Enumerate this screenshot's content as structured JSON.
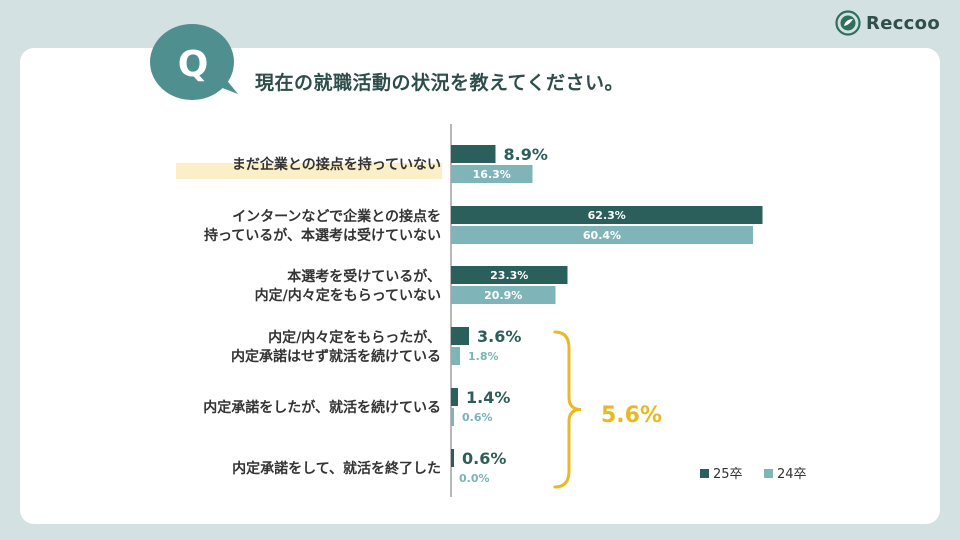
{
  "brand": {
    "name": "Reccoo"
  },
  "question": {
    "badge": "Q",
    "text": "現在の就職活動の状況を教えてください。"
  },
  "colors": {
    "series_25": "#2b5f5b",
    "series_24": "#7fb5b8",
    "accent": "#e8b923",
    "highlight": "#fbefc7",
    "badge": "#4f8f8f"
  },
  "chart_data": {
    "type": "bar",
    "orientation": "horizontal",
    "categories": [
      [
        "まだ企業との接点を持っていない"
      ],
      [
        "インターンなどで企業との接点を",
        "持っているが、本選考は受けていない"
      ],
      [
        "本選考を受けているが、",
        "内定/内々定をもらっていない"
      ],
      [
        "内定/内々定をもらったが、",
        "内定承諾はせず就活を続けている"
      ],
      [
        "内定承諾をしたが、就活を続けている"
      ],
      [
        "内定承諾をして、就活を終了した"
      ]
    ],
    "series": [
      {
        "name": "25卒",
        "values": [
          8.9,
          62.3,
          23.3,
          3.6,
          1.4,
          0.6
        ],
        "labels": [
          "8.9%",
          "62.3%",
          "23.3%",
          "3.6%",
          "1.4%",
          "0.6%"
        ]
      },
      {
        "name": "24卒",
        "values": [
          16.3,
          60.4,
          20.9,
          1.8,
          0.6,
          0.0
        ],
        "labels": [
          "16.3%",
          "60.4%",
          "20.9%",
          "1.8%",
          "0.6%",
          "0.0%"
        ]
      }
    ],
    "xlim": [
      0,
      70
    ],
    "highlighted_category": 0,
    "brace_total": "5.6%",
    "legend": "bottom-right",
    "grid": false
  }
}
